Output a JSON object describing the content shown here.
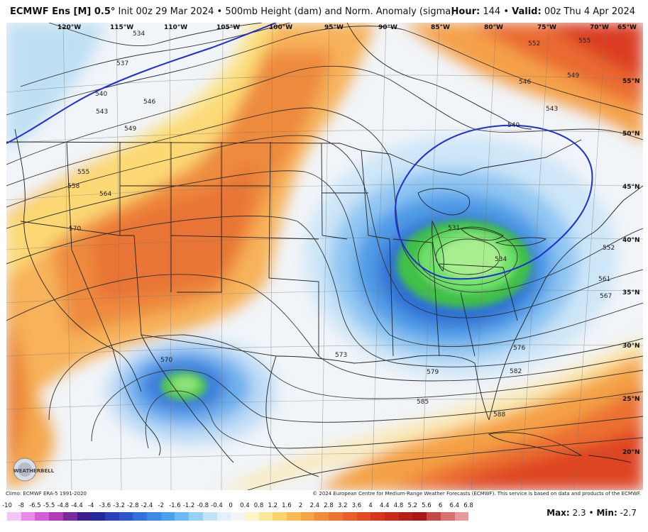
{
  "header": {
    "model": "ECMWF Ens [M] 0.5°",
    "init": "Init 00z 29 Mar 2024",
    "separator": "•",
    "product": "500mb Height (dam) and Norm. Anomaly (sigma)",
    "hour_label": "Hour:",
    "hour_value": "144",
    "valid_label": "Valid:",
    "valid_value": "00z Thu 4 Apr 2024"
  },
  "map": {
    "longitude_labels": [
      "120°W",
      "115°W",
      "110°W",
      "105°W",
      "100°W",
      "95°W",
      "90°W",
      "85°W",
      "80°W",
      "75°W",
      "70°W",
      "65°W"
    ],
    "latitude_labels": [
      "55°N",
      "50°N",
      "45°N",
      "40°N",
      "35°N",
      "30°N",
      "25°N",
      "20°N"
    ],
    "contour_labels": [
      "534",
      "537",
      "540",
      "543",
      "546",
      "549",
      "552",
      "555",
      "558",
      "564",
      "570",
      "573",
      "576",
      "579",
      "582",
      "585",
      "588",
      "531",
      "534",
      "540",
      "543",
      "546",
      "549",
      "552",
      "555",
      "561",
      "567",
      "570"
    ],
    "logo_text": "WEATHERBELL",
    "colors": {
      "anomaly_positive": "#e8552a",
      "anomaly_negative": "#2b6fd6",
      "strong_negative": "#5fd34a",
      "contour": "#333333",
      "highlight_contour": "#1f2fd0"
    }
  },
  "footer": {
    "climo": "Climo: ECMWF ERA-5 1991-2020",
    "copyright": "© 2024 European Centre for Medium-Range Weather Forecasts (ECMWF). This service is based on data and products of the ECMWF."
  },
  "legend": {
    "ticks": [
      "-10",
      "-8",
      "-6.5",
      "-5.5",
      "-4.8",
      "-4.4",
      "-4",
      "-3.6",
      "-3.2",
      "-2.8",
      "-2.4",
      "-2",
      "-1.6",
      "-1.2",
      "-0.8",
      "-0.4",
      "0",
      "0.4",
      "0.8",
      "1.2",
      "1.6",
      "2",
      "2.4",
      "2.8",
      "3.2",
      "3.6",
      "4",
      "4.4",
      "4.8",
      "5.2",
      "5.6",
      "6",
      "6.4",
      "6.8"
    ],
    "colors": [
      "#f5c6f5",
      "#e98be9",
      "#d45cd4",
      "#b03cb8",
      "#7a2a9a",
      "#3c1e8c",
      "#232a9c",
      "#2b3fb8",
      "#2d58cc",
      "#3470dc",
      "#3c8ae6",
      "#4aa2ee",
      "#6cbcf3",
      "#95d2f6",
      "#bfe3f8",
      "#e2f0fa",
      "#f2f4f8",
      "#fff6c8",
      "#fde89a",
      "#fbd36f",
      "#f8bd52",
      "#f5a542",
      "#f28c38",
      "#ee7330",
      "#ea5e2a",
      "#e34a24",
      "#d8371e",
      "#c92a1a",
      "#b81f18",
      "#a81616",
      "#c44a4a",
      "#d97070",
      "#e89a9a"
    ],
    "max_label": "Max:",
    "max_value": "2.3",
    "min_label": "Min:",
    "min_value": "-2.7",
    "sep": "•"
  }
}
